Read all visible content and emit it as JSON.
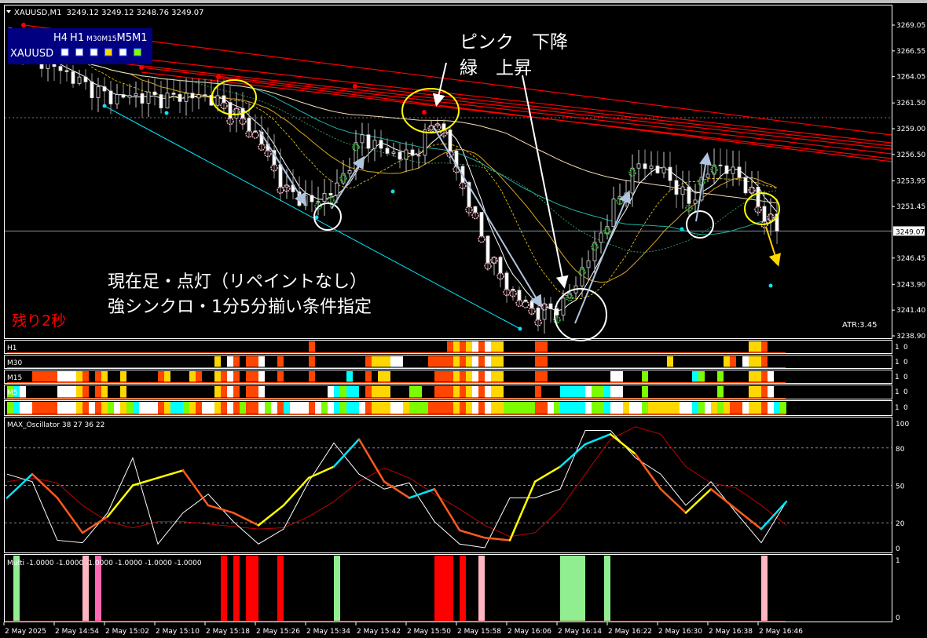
{
  "header": {
    "symbol_tf": "XAUUSD,M1",
    "ohlc": "3249.12 3249.12 3248.76 3249.07"
  },
  "dashboard": {
    "tf_labels": [
      "H4",
      "H1",
      "M30",
      "M15",
      "M5",
      "M1"
    ],
    "symbol": "XAUUSD",
    "squares": [
      "#ffffff",
      "#ffffff",
      "#ffffff",
      "#ffd700",
      "#ffffff",
      "#7cfc00"
    ]
  },
  "annotations": {
    "pink_down": "ピンク　下降",
    "green_up": "緑　上昇",
    "line1": "現在足・点灯（リペイントなし）",
    "line2": "強シンクロ・1分5分揃い条件指定",
    "remaining": "残り2秒",
    "atr": "ATR:3.45"
  },
  "price_axis": {
    "labels": [
      "3269.05",
      "3266.55",
      "3264.05",
      "3261.50",
      "3259.00",
      "3256.50",
      "3253.95",
      "3251.45",
      "3246.45",
      "3243.90",
      "3241.40",
      "3238.90"
    ],
    "current": "3249.07",
    "range": [
      3238.9,
      3269.05
    ]
  },
  "price_path": {
    "keypoint_step_bars": 4,
    "closes": [
      3268.1,
      3265.8,
      3264.7,
      3263.2,
      3262.0,
      3262.2,
      3261.9,
      3262.2,
      3262.0,
      3260.5,
      3257.8,
      3252.9,
      3251.8,
      3253.3,
      3258.2,
      3256.7,
      3256.3,
      3260.1,
      3253.7,
      3246.8,
      3243.0,
      3241.1,
      3241.9,
      3246.4,
      3251.4,
      3255.6,
      3254.8,
      3251.8,
      3255.6,
      3254.4,
      3250.6,
      3249.07
    ]
  },
  "strips": {
    "colors": {
      "O": "#ff4500",
      "Y": "#ffd700",
      "W": "#ffffff",
      "C": "#00ffff",
      "G": "#7cfc00"
    },
    "rows": [
      {
        "label": "H1",
        "cells": "KKKKKKKKKKKKKKKKKKKKKKKKKKKKKKKKKKKKKKKKKKKKKKKKOKKKKKKKKKKKKKKKKKKKKKOYOYWOWYYKKKKKOOKKKKKKKKKKKKKKKKKKKKKKKKKKKKKKKKYYOKKK"
      },
      {
        "label": "M30",
        "cells": "KKKKKKKKKKKKKKKKKKKKKKKKKKKKKKKKKYKWOKOOWKKOKKKKOKKKKKKKKOYYYWWKKKKOOOOYOYWOWYYKKKKKOOKKKKKKKKKKKKKKKKKKKYKKKKKKKKYOKWYYOKKK"
      },
      {
        "label": "M15",
        "cells": "KKKKOOOOWWWYOKOYKKYKKKKKOYKKKYOKKYOWOKOOWKKOKKKKOKKKKKCKKOKYYKKKKKKKOOOYOYWOWYYKKKKKOOKKKKKKKKKKWWKKKGKKKKKKKCGKKGKKKKYYOWKK"
      },
      {
        "label": "M5",
        "cells": "GCWKKKKKWWWYOKOYKKYKKKKKKKKKKKKKKYOWOKOOWKKKKKKKKKKWCGCCKOYYYKKKGGKKOOOYOYWOWYYKKKKKOKKKCCCCWGGCWWKKKGKKKKKKKKKKKGKKKKYYOWKK"
      },
      {
        "label": "",
        "cells": "GCWWOOOOWWWYOWOYGWYGCWWWOYCCGYOWWYOWOGOOWGWOCWWWOWGWCGCCWOYYYWWYGGGOOOOYOYWOWYYGGGGGOOWGCCCCWGGCWWYWWGYYYYYWWCGWYGYOOWYYOWCG"
      }
    ],
    "axis_labels": [
      "1",
      "0"
    ]
  },
  "oscillator": {
    "label": "MAX_Oscillator 38 27 36 22",
    "axis": [
      "100",
      "80",
      "50",
      "20",
      "0"
    ],
    "levels": [
      80,
      50,
      20
    ],
    "step_bars": 4,
    "main": [
      40,
      59,
      40,
      12,
      25,
      50,
      56,
      62,
      34,
      28,
      18,
      34,
      56,
      65,
      87,
      53,
      40,
      47,
      14,
      8,
      6,
      53,
      65,
      83,
      91,
      75,
      47,
      28,
      47,
      31,
      15,
      37
    ],
    "main_colors": "COOOYYYOOOYYYCOOCOOOYYCCYOOYOOC",
    "main_palette": {
      "C": "#00e5ff",
      "O": "#ff5a1e",
      "Y": "#ffff00"
    },
    "fast": [
      59,
      53,
      6,
      4,
      28,
      72,
      3,
      28,
      43,
      21,
      3,
      15,
      53,
      84,
      59,
      47,
      52,
      21,
      3,
      0,
      40,
      40,
      47,
      94,
      94,
      72,
      59,
      34,
      53,
      28,
      4,
      37
    ],
    "signal": [
      53,
      56,
      52,
      34,
      21,
      16,
      21,
      21,
      19,
      17,
      15,
      16,
      25,
      37,
      53,
      64,
      56,
      43,
      31,
      18,
      9,
      12,
      31,
      59,
      87,
      97,
      91,
      65,
      52,
      48,
      34,
      18
    ]
  },
  "multi": {
    "label": "Multi -1.0000 -1.0000 -1.0000 -1.0000 -1.0000 -1.0000",
    "axis": [
      "1",
      "0"
    ],
    "cells": "KLKKKKKKKKKKPKHKKKKKKKKKKKKKKKKKKKRKRKRRKKKRKKKKKKKKLKKKKKKKKKKKKKKKRRRKRKKPKKKKKKKKKKKKLLLLKKKLKKKKKKKKKKKKKKKKKKKKKKKKPKKK",
    "colors": {
      "L": "#90ee90",
      "P": "#ffb6c1",
      "H": "#ff69b4",
      "R": "#ff0000"
    }
  },
  "time_axis": [
    "2 May 2025",
    "2 May 14:54",
    "2 May 15:02",
    "2 May 15:10",
    "2 May 15:18",
    "2 May 15:26",
    "2 May 15:34",
    "2 May 15:42",
    "2 May 15:50",
    "2 May 15:58",
    "2 May 16:06",
    "2 May 16:14",
    "2 May 16:22",
    "2 May 16:30",
    "2 May 16:38",
    "2 May 16:46"
  ]
}
